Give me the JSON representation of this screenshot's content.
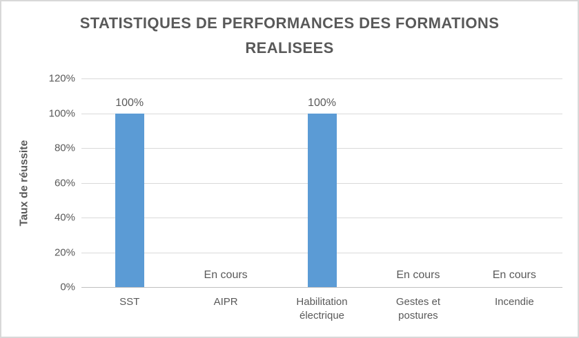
{
  "chart_data": {
    "type": "bar",
    "title": "STATISTIQUES DE PERFORMANCES DES FORMATIONS REALISEES",
    "xlabel": "",
    "ylabel": "Taux de réussite",
    "categories": [
      "SST",
      "AIPR",
      "Habilitation électrique",
      "Gestes et postures",
      "Incendie"
    ],
    "values": [
      100,
      null,
      100,
      null,
      null
    ],
    "data_labels": [
      "100%",
      "En cours",
      "100%",
      "En cours",
      "En cours"
    ],
    "yticks": [
      0,
      20,
      40,
      60,
      80,
      100,
      120
    ],
    "ytick_labels": [
      "0%",
      "20%",
      "40%",
      "60%",
      "80%",
      "100%",
      "120%"
    ],
    "ylim": [
      0,
      120
    ],
    "grid": true,
    "legend": "none",
    "colors": {
      "bar": "#5B9BD5",
      "text": "#595959",
      "gridline": "#D9D9D9",
      "axis": "#BFBFBF",
      "frame_border": "#D8D8D8"
    }
  }
}
